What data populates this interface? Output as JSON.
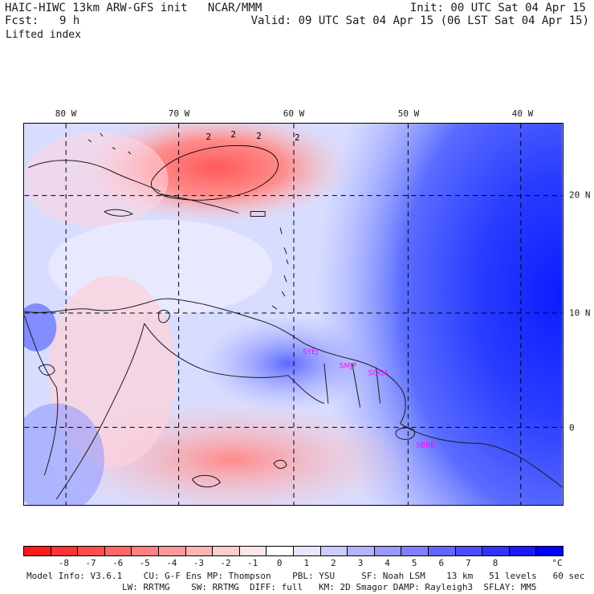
{
  "header": {
    "model_title": "HAIC-HIWC 13km ARW-GFS init   NCAR/MMM",
    "init": "Init: 00 UTC Sat 04 Apr 15",
    "fcst_label": "Fcst:",
    "fcst_value": "9 h",
    "valid": "Valid: 09 UTC Sat 04 Apr 15 (06 LST Sat 04 Apr 15)",
    "field": "Lifted index"
  },
  "map": {
    "lon_labels": [
      "80 W",
      "70 W",
      "60 W",
      "50 W",
      "40 W"
    ],
    "lat_labels": [
      "20 N",
      "10 N",
      "0"
    ],
    "contour_labels": [
      "2",
      "2",
      "2",
      "2"
    ],
    "stations": [
      "SYEJ",
      "SMJP",
      "SOCA",
      "SBBE"
    ],
    "station_color": "#ff00ff"
  },
  "colorbar": {
    "labels": [
      "-8",
      "-7",
      "-6",
      "-5",
      "-4",
      "-3",
      "-2",
      "-1",
      "0",
      "1",
      "2",
      "3",
      "4",
      "5",
      "6",
      "7",
      "8"
    ],
    "unit": "°C",
    "colors": [
      "#ff1a1a",
      "#ff3333",
      "#ff4d4d",
      "#ff6666",
      "#ff8080",
      "#ff9999",
      "#ffb3b3",
      "#ffcccc",
      "#ffe6e6",
      "#ffffff",
      "#e6e6ff",
      "#ccccff",
      "#b3b3ff",
      "#9999ff",
      "#8080ff",
      "#6666ff",
      "#4d4dff",
      "#3333ff",
      "#1a1aff",
      "#0000ff"
    ]
  },
  "footer": {
    "line1": "Model Info: V3.6.1    CU: G-F Ens MP: Thompson    PBL: YSU     SF: Noah LSM    13 km   51 levels   60 sec",
    "line2": "LW: RRTMG    SW: RRTMG  DIFF: full   KM: 2D Smagor DAMP: Rayleigh3  SFLAY: MM5"
  }
}
